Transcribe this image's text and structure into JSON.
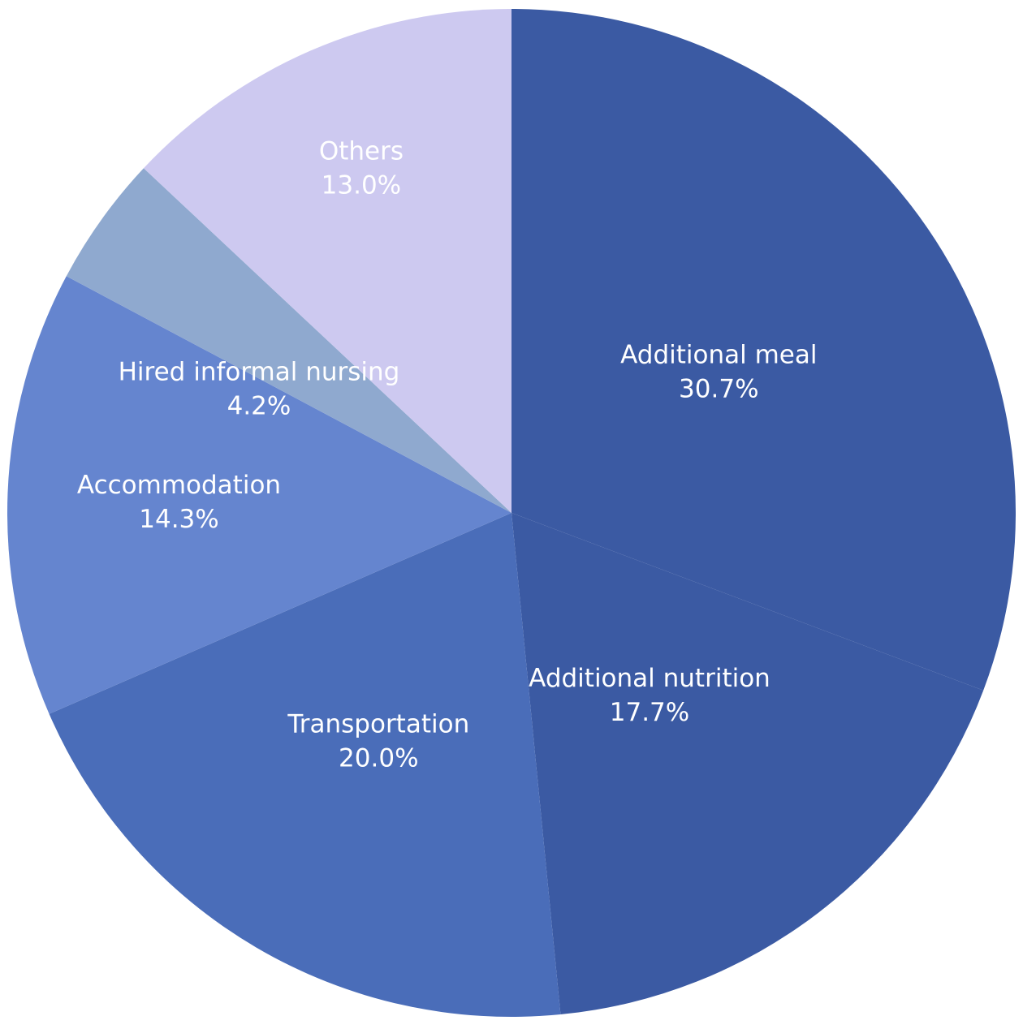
{
  "chart_data": {
    "type": "pie",
    "title": "",
    "start_angle_deg": 0,
    "direction": "clockwise",
    "slices": [
      {
        "label": "Additional meal",
        "value": 30.7,
        "value_label": "30.7%",
        "color": "#3b5aa3"
      },
      {
        "label": "Additional nutrition",
        "value": 17.7,
        "value_label": "17.7%",
        "color": "#3b5aa3"
      },
      {
        "label": "Transportation",
        "value": 20.0,
        "value_label": "20.0%",
        "color": "#4a6db9"
      },
      {
        "label": "Accommodation",
        "value": 14.3,
        "value_label": "14.3%",
        "color": "#6585cf"
      },
      {
        "label": "Hired informal nursing",
        "value": 4.2,
        "value_label": "4.2%",
        "color": "#8fa9cf"
      },
      {
        "label": "Others",
        "value": 13.0,
        "value_label": "13.0%",
        "color": "#cdc9f0"
      }
    ]
  }
}
